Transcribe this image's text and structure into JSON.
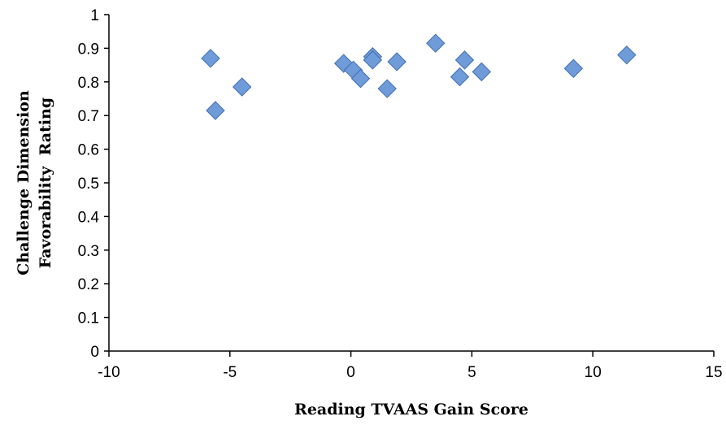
{
  "chart_data": {
    "type": "scatter",
    "title": "",
    "xlabel": "Reading TVAAS Gain Score",
    "ylabel_lines": [
      "Challenge Dimension",
      "Favorability  Rating"
    ],
    "xlim": [
      -10,
      15
    ],
    "ylim": [
      0,
      1
    ],
    "x_ticks": [
      -10,
      -5,
      0,
      5,
      10,
      15
    ],
    "y_ticks": [
      0,
      0.1,
      0.2,
      0.3,
      0.4,
      0.5,
      0.6,
      0.7,
      0.8,
      0.9,
      1
    ],
    "x_tick_labels": [
      "-10",
      "-5",
      "0",
      "5",
      "10",
      "15"
    ],
    "y_tick_labels": [
      "0",
      "0.1",
      "0.2",
      "0.3",
      "0.4",
      "0.5",
      "0.6",
      "0.7",
      "0.8",
      "0.9",
      "1"
    ],
    "grid": false,
    "legend": "none",
    "marker": "diamond",
    "marker_color": "#6f9bd8",
    "marker_edge_color": "#3f6eb4",
    "points": [
      {
        "x": -5.8,
        "y": 0.87
      },
      {
        "x": -5.6,
        "y": 0.715
      },
      {
        "x": -4.5,
        "y": 0.785
      },
      {
        "x": -0.3,
        "y": 0.855
      },
      {
        "x": 0.1,
        "y": 0.835
      },
      {
        "x": 0.4,
        "y": 0.81
      },
      {
        "x": 0.9,
        "y": 0.875
      },
      {
        "x": 0.9,
        "y": 0.865
      },
      {
        "x": 1.5,
        "y": 0.78
      },
      {
        "x": 1.9,
        "y": 0.86
      },
      {
        "x": 3.5,
        "y": 0.915
      },
      {
        "x": 4.5,
        "y": 0.815
      },
      {
        "x": 4.7,
        "y": 0.865
      },
      {
        "x": 5.4,
        "y": 0.83
      },
      {
        "x": 9.2,
        "y": 0.84
      },
      {
        "x": 11.4,
        "y": 0.88
      }
    ]
  }
}
